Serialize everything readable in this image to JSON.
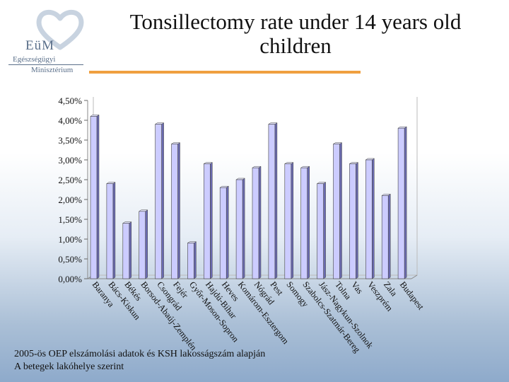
{
  "logo": {
    "mark": "EüM",
    "line1": "Egészségügyi",
    "line2": "Minisztérium"
  },
  "title_line1": "Tonsillectomy rate under 14 years old",
  "title_line2": "children",
  "footnote_line1": "2005-ös OEP elszámolási adatok és KSH lakosságszám alapján",
  "footnote_line2": "A betegek lakóhelye szerint",
  "colors": {
    "bar_face": "#ccccff",
    "bar_side": "#6a6ab0",
    "bar_top": "#e6e6ff",
    "accent_rule": "#f0a040"
  },
  "chart_data": {
    "type": "bar",
    "title": "",
    "xlabel": "",
    "ylabel": "",
    "ylim": [
      0,
      0.045
    ],
    "y_ticks": [
      "0,00%",
      "0,50%",
      "1,00%",
      "1,50%",
      "2,00%",
      "2,50%",
      "3,00%",
      "3,50%",
      "4,00%",
      "4,50%"
    ],
    "y_tick_values": [
      0,
      0.005,
      0.01,
      0.015,
      0.02,
      0.025,
      0.03,
      0.035,
      0.04,
      0.045
    ],
    "grid": false,
    "legend": "none",
    "categories": [
      "Baranya",
      "Bács-Kiskun",
      "Békés",
      "Borsod-Abaúj-Zemplén",
      "Csongrád",
      "Fejér",
      "Győr-Moson-Sopron",
      "Hajdú-Bihar",
      "Heves",
      "Komárom-Esztergom",
      "Nógrád",
      "Pest",
      "Somogy",
      "Szabolcs-Szatmár-Bereg",
      "Jász-Nagykun-Szolnok",
      "Tolna",
      "Vas",
      "Veszprém",
      "Zala",
      "Budapest"
    ],
    "values": [
      0.041,
      0.024,
      0.014,
      0.017,
      0.039,
      0.034,
      0.009,
      0.029,
      0.023,
      0.025,
      0.028,
      0.039,
      0.029,
      0.028,
      0.024,
      0.034,
      0.029,
      0.03,
      0.021,
      0.038
    ]
  }
}
